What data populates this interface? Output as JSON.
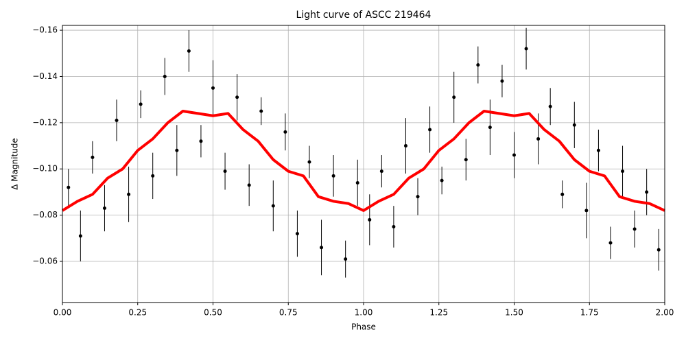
{
  "chart_data": {
    "type": "scatter",
    "title": "Light curve of ASCC 219464",
    "xlabel": "Phase",
    "ylabel": "Δ Magnitude",
    "xlim": [
      0,
      2
    ],
    "ylim": [
      -0.0422,
      -0.1621
    ],
    "xticks": [
      {
        "value": 0,
        "label": "0.00"
      },
      {
        "value": 0.25,
        "label": "0.25"
      },
      {
        "value": 0.5,
        "label": "0.50"
      },
      {
        "value": 0.75,
        "label": "0.75"
      },
      {
        "value": 1,
        "label": "1.00"
      },
      {
        "value": 1.25,
        "label": "1.25"
      },
      {
        "value": 1.5,
        "label": "1.50"
      },
      {
        "value": 1.75,
        "label": "1.75"
      },
      {
        "value": 2,
        "label": "2.00"
      }
    ],
    "yticks": [
      {
        "value": -0.16,
        "label": "−0.16"
      },
      {
        "value": -0.14,
        "label": "−0.14"
      },
      {
        "value": -0.12,
        "label": "−0.12"
      },
      {
        "value": -0.1,
        "label": "−0.10"
      },
      {
        "value": -0.08,
        "label": "−0.08"
      },
      {
        "value": -0.06,
        "label": "−0.06"
      }
    ],
    "grid": true,
    "series": [
      {
        "type": "errorbar",
        "color": "#000000",
        "x": [
          0.02,
          0.06,
          0.1,
          0.14,
          0.18,
          0.22,
          0.26,
          0.3,
          0.34,
          0.38,
          0.42,
          0.46,
          0.5,
          0.54,
          0.58,
          0.62,
          0.66,
          0.7,
          0.74,
          0.78,
          0.82,
          0.86,
          0.9,
          0.94,
          0.98,
          1.02,
          1.06,
          1.1,
          1.14,
          1.18,
          1.22,
          1.26,
          1.3,
          1.34,
          1.38,
          1.42,
          1.46,
          1.5,
          1.54,
          1.58,
          1.62,
          1.66,
          1.7,
          1.74,
          1.78,
          1.82,
          1.86,
          1.9,
          1.94,
          1.98
        ],
        "values": [
          -0.092,
          -0.071,
          -0.105,
          -0.083,
          -0.121,
          -0.089,
          -0.128,
          -0.097,
          -0.14,
          -0.108,
          -0.151,
          -0.112,
          -0.135,
          -0.099,
          -0.131,
          -0.093,
          -0.125,
          -0.084,
          -0.116,
          -0.072,
          -0.103,
          -0.066,
          -0.097,
          -0.061,
          -0.094,
          -0.078,
          -0.099,
          -0.075,
          -0.11,
          -0.088,
          -0.117,
          -0.095,
          -0.131,
          -0.104,
          -0.145,
          -0.118,
          -0.138,
          -0.106,
          -0.152,
          -0.113,
          -0.127,
          -0.089,
          -0.119,
          -0.082,
          -0.108,
          -0.068,
          -0.099,
          -0.074,
          -0.09,
          -0.065
        ],
        "errors": [
          0.008,
          0.011,
          0.007,
          0.01,
          0.009,
          0.012,
          0.006,
          0.01,
          0.008,
          0.011,
          0.009,
          0.007,
          0.012,
          0.008,
          0.01,
          0.009,
          0.006,
          0.011,
          0.008,
          0.01,
          0.007,
          0.012,
          0.009,
          0.008,
          0.01,
          0.011,
          0.007,
          0.009,
          0.012,
          0.008,
          0.01,
          0.006,
          0.011,
          0.009,
          0.008,
          0.012,
          0.007,
          0.01,
          0.009,
          0.011,
          0.008,
          0.006,
          0.01,
          0.012,
          0.009,
          0.007,
          0.011,
          0.008,
          0.01,
          0.009
        ]
      },
      {
        "type": "line",
        "color": "#ff0000",
        "x": [
          0,
          0.05,
          0.1,
          0.15,
          0.2,
          0.25,
          0.3,
          0.35,
          0.4,
          0.45,
          0.5,
          0.55,
          0.6,
          0.65,
          0.7,
          0.75,
          0.8,
          0.85,
          0.9,
          0.95,
          1.0,
          1.05,
          1.1,
          1.15,
          1.2,
          1.25,
          1.3,
          1.35,
          1.4,
          1.45,
          1.5,
          1.55,
          1.6,
          1.65,
          1.7,
          1.75,
          1.8,
          1.85,
          1.9,
          1.95,
          2.0
        ],
        "values": [
          -0.082,
          -0.086,
          -0.089,
          -0.096,
          -0.1,
          -0.108,
          -0.113,
          -0.12,
          -0.125,
          -0.124,
          -0.123,
          -0.124,
          -0.117,
          -0.112,
          -0.104,
          -0.099,
          -0.097,
          -0.088,
          -0.086,
          -0.085,
          -0.082,
          -0.086,
          -0.089,
          -0.096,
          -0.1,
          -0.108,
          -0.113,
          -0.12,
          -0.125,
          -0.124,
          -0.123,
          -0.124,
          -0.117,
          -0.112,
          -0.104,
          -0.099,
          -0.097,
          -0.088,
          -0.086,
          -0.085,
          -0.082
        ]
      }
    ]
  }
}
